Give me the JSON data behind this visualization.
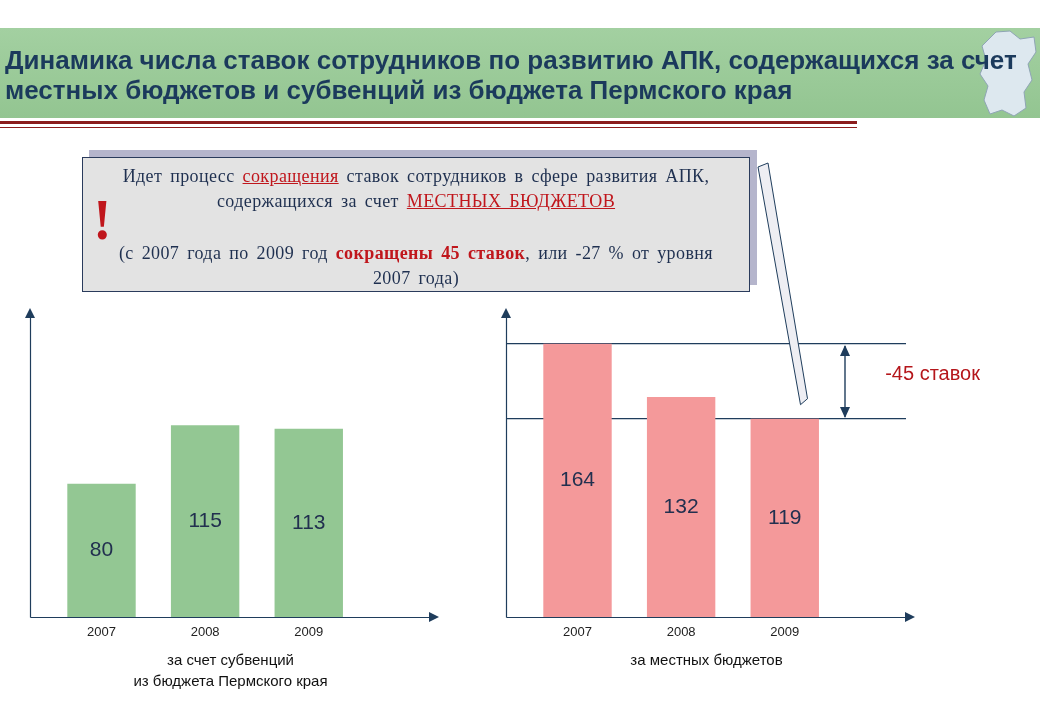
{
  "chart_data": [
    {
      "type": "bar",
      "title": "Динамика числа ставок сотрудников по развитию АПК, содержащихся за счет местных бюджетов и субвенций из бюджета Пермского края",
      "xlabel": "за счет субвенций\nиз бюджета Пермского края",
      "categories": [
        "2007",
        "2008",
        "2009"
      ],
      "values": [
        80,
        115,
        113
      ],
      "color": "#93c793",
      "data_labels": true,
      "tick_labels": "x"
    },
    {
      "type": "bar",
      "xlabel": "за местных бюджетов",
      "categories": [
        "2007",
        "2008",
        "2009"
      ],
      "values": [
        164,
        132,
        119
      ],
      "color": "#f4999a",
      "data_labels": true,
      "tick_labels": "x",
      "ref_lines": [
        {
          "axis": "y",
          "value": 164,
          "color": "#1f3d5c"
        },
        {
          "axis": "y",
          "value": 119,
          "color": "#1f3d5c"
        }
      ],
      "annotations": [
        "Идет процесс",
        "сокращения",
        "ставок сотрудников в сфере развития АПК,",
        "содержащихся за счет",
        "МЕСТНЫХ БЮДЖЕТОВ",
        "(с 2007 года по 2009 год",
        "сокращены 45 ставок",
        ", или -27 % от уровня",
        "2007 года)",
        "!",
        "-45 ставок"
      ]
    }
  ]
}
